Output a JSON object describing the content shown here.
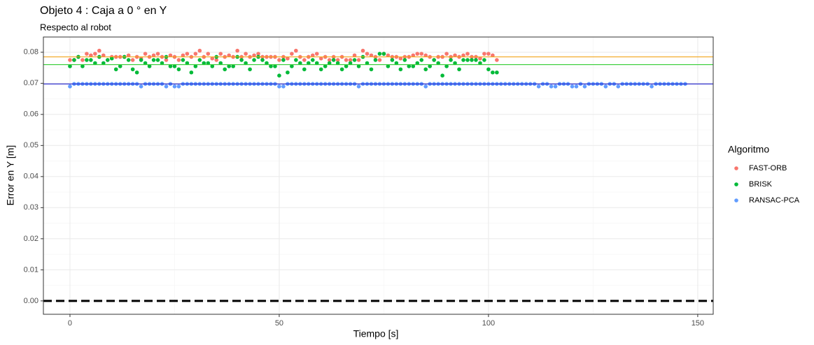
{
  "chart_data": {
    "type": "scatter",
    "title": "Objeto 4 : Caja a 0 ° en  Y",
    "subtitle": "Respecto al robot",
    "x_label": "Tiempo [s]",
    "y_label": "Error en Y [m]",
    "legend_title": "Algoritmo",
    "legend_position": "right",
    "grid": true,
    "xlim": [
      -6.35,
      153.7
    ],
    "ylim": [
      -0.0043,
      0.0849
    ],
    "xticks": [
      0,
      50,
      100,
      150
    ],
    "yticks": [
      {
        "value": 0,
        "label": "0.00"
      },
      0.01,
      0.02,
      0.03,
      0.04,
      0.05,
      0.06,
      0.07,
      0.08
    ],
    "x_minor_grid": [
      25,
      75,
      125
    ],
    "y_minor_grid": [
      0.005,
      0.015,
      0.025,
      0.035,
      0.045,
      0.055,
      0.065,
      0.075
    ],
    "hlines": [
      {
        "value": 0.0785,
        "color": "#f2a51a",
        "linetype": "solid"
      },
      {
        "value": 0.076,
        "color": "#33cc33",
        "linetype": "solid"
      },
      {
        "value": 0.0698,
        "color": "#1a1acc",
        "linetype": "solid"
      },
      {
        "value": 0,
        "color": "#000000",
        "linetype": "dashed"
      }
    ],
    "series": [
      {
        "name": "FAST-ORB",
        "color": "#F8766D",
        "x": [
          0,
          1,
          2,
          3,
          4,
          5,
          6,
          7,
          8,
          9,
          10,
          11,
          12,
          13,
          14,
          15,
          16,
          17,
          18,
          19,
          20,
          21,
          22,
          23,
          24,
          25,
          26,
          27,
          28,
          29,
          30,
          31,
          32,
          33,
          34,
          35,
          36,
          37,
          38,
          39,
          40,
          41,
          42,
          43,
          44,
          45,
          46,
          47,
          48,
          49,
          50,
          51,
          52,
          53,
          54,
          55,
          56,
          57,
          58,
          59,
          60,
          61,
          62,
          63,
          64,
          65,
          66,
          67,
          68,
          69,
          70,
          71,
          72,
          73,
          74,
          75,
          76,
          77,
          78,
          79,
          80,
          81,
          82,
          83,
          84,
          85,
          86,
          87,
          88,
          89,
          90,
          91,
          92,
          93,
          94,
          95,
          96,
          97,
          98,
          99,
          100,
          101,
          102
        ],
        "values": [
          0.0775,
          0.0775,
          0.0785,
          0.0775,
          0.0795,
          0.079,
          0.0795,
          0.0805,
          0.079,
          0.0775,
          0.0785,
          0.0785,
          0.0785,
          0.0785,
          0.079,
          0.0775,
          0.0785,
          0.078,
          0.0795,
          0.0785,
          0.079,
          0.0795,
          0.0785,
          0.0775,
          0.079,
          0.0785,
          0.0775,
          0.079,
          0.0795,
          0.0785,
          0.0795,
          0.0805,
          0.0785,
          0.0795,
          0.078,
          0.0775,
          0.0795,
          0.0785,
          0.079,
          0.0785,
          0.0805,
          0.0785,
          0.0795,
          0.0785,
          0.079,
          0.0795,
          0.0785,
          0.0785,
          0.0785,
          0.0785,
          0.0775,
          0.0785,
          0.078,
          0.0795,
          0.0805,
          0.0785,
          0.0775,
          0.0785,
          0.079,
          0.0795,
          0.078,
          0.0785,
          0.0775,
          0.0785,
          0.0775,
          0.0785,
          0.0775,
          0.0775,
          0.079,
          0.0775,
          0.0805,
          0.0795,
          0.079,
          0.0785,
          0.0775,
          0.0795,
          0.079,
          0.0785,
          0.0785,
          0.078,
          0.0785,
          0.0785,
          0.079,
          0.0795,
          0.0795,
          0.079,
          0.0785,
          0.0775,
          0.0785,
          0.0785,
          0.0795,
          0.0785,
          0.079,
          0.0785,
          0.079,
          0.0795,
          0.0785,
          0.0785,
          0.078,
          0.0795,
          0.0795,
          0.079,
          0.0775
        ]
      },
      {
        "name": "BRISK",
        "color": "#00BA38",
        "x": [
          0,
          1,
          2,
          3,
          4,
          5,
          6,
          7,
          8,
          9,
          10,
          11,
          12,
          13,
          14,
          15,
          16,
          17,
          18,
          19,
          20,
          21,
          22,
          23,
          24,
          25,
          26,
          27,
          28,
          29,
          30,
          31,
          32,
          33,
          34,
          35,
          36,
          37,
          38,
          39,
          40,
          41,
          42,
          43,
          44,
          45,
          46,
          47,
          48,
          49,
          50,
          51,
          52,
          53,
          54,
          55,
          56,
          57,
          58,
          59,
          60,
          61,
          62,
          63,
          64,
          65,
          66,
          67,
          68,
          69,
          70,
          71,
          72,
          73,
          74,
          75,
          76,
          77,
          78,
          79,
          80,
          81,
          82,
          83,
          84,
          85,
          86,
          87,
          88,
          89,
          90,
          91,
          92,
          93,
          94,
          95,
          96,
          97,
          98,
          99,
          100,
          101,
          102
        ],
        "values": [
          0.0755,
          0.0775,
          0.0785,
          0.0755,
          0.0775,
          0.0775,
          0.0765,
          0.0785,
          0.0765,
          0.0775,
          0.078,
          0.0745,
          0.0755,
          0.0785,
          0.0775,
          0.0745,
          0.0735,
          0.0775,
          0.0765,
          0.0755,
          0.0775,
          0.0775,
          0.0765,
          0.0785,
          0.0755,
          0.0755,
          0.0745,
          0.0775,
          0.0765,
          0.0735,
          0.0755,
          0.0775,
          0.0765,
          0.0765,
          0.0755,
          0.0785,
          0.0765,
          0.0745,
          0.0755,
          0.0755,
          0.0785,
          0.0775,
          0.0765,
          0.0745,
          0.0775,
          0.0785,
          0.0775,
          0.0765,
          0.0755,
          0.0755,
          0.0725,
          0.0775,
          0.0735,
          0.0755,
          0.0775,
          0.0765,
          0.0745,
          0.0765,
          0.0775,
          0.0765,
          0.0745,
          0.0755,
          0.0765,
          0.0775,
          0.0765,
          0.0745,
          0.0755,
          0.0765,
          0.0775,
          0.0755,
          0.0785,
          0.0765,
          0.0745,
          0.0775,
          0.0795,
          0.0795,
          0.0755,
          0.0775,
          0.0765,
          0.0745,
          0.0775,
          0.0755,
          0.0755,
          0.0765,
          0.0775,
          0.0745,
          0.0755,
          0.0775,
          0.0765,
          0.0725,
          0.0755,
          0.0775,
          0.0765,
          0.0745,
          0.0775,
          0.0775,
          0.0775,
          0.0775,
          0.0765,
          0.0775,
          0.0745,
          0.0735,
          0.0735
        ]
      },
      {
        "name": "RANSAC-PCA",
        "color": "#619CFF",
        "x": [
          0,
          1,
          2,
          3,
          4,
          5,
          6,
          7,
          8,
          9,
          10,
          11,
          12,
          13,
          14,
          15,
          16,
          17,
          18,
          19,
          20,
          21,
          22,
          23,
          24,
          25,
          26,
          27,
          28,
          29,
          30,
          31,
          32,
          33,
          34,
          35,
          36,
          37,
          38,
          39,
          40,
          41,
          42,
          43,
          44,
          45,
          46,
          47,
          48,
          49,
          50,
          51,
          52,
          53,
          54,
          55,
          56,
          57,
          58,
          59,
          60,
          61,
          62,
          63,
          64,
          65,
          66,
          67,
          68,
          69,
          70,
          71,
          72,
          73,
          74,
          75,
          76,
          77,
          78,
          79,
          80,
          81,
          82,
          83,
          84,
          85,
          86,
          87,
          88,
          89,
          90,
          91,
          92,
          93,
          94,
          95,
          96,
          97,
          98,
          99,
          100,
          101,
          102,
          103,
          104,
          105,
          106,
          107,
          108,
          109,
          110,
          111,
          112,
          113,
          114,
          115,
          116,
          117,
          118,
          119,
          120,
          121,
          122,
          123,
          124,
          125,
          126,
          127,
          128,
          129,
          130,
          131,
          132,
          133,
          134,
          135,
          136,
          137,
          138,
          139,
          140,
          141,
          142,
          143,
          144,
          145,
          146,
          147
        ],
        "values": [
          0.069,
          0.0698,
          0.0698,
          0.0698,
          0.0698,
          0.0698,
          0.0698,
          0.0698,
          0.0698,
          0.0698,
          0.0698,
          0.0698,
          0.0698,
          0.0698,
          0.0698,
          0.0698,
          0.0698,
          0.069,
          0.0698,
          0.0698,
          0.0698,
          0.0698,
          0.0698,
          0.069,
          0.0698,
          0.069,
          0.069,
          0.0698,
          0.0698,
          0.0698,
          0.0698,
          0.0698,
          0.0698,
          0.0698,
          0.0698,
          0.0698,
          0.0698,
          0.0698,
          0.0698,
          0.0698,
          0.0698,
          0.0698,
          0.0698,
          0.0698,
          0.0698,
          0.0698,
          0.0698,
          0.0698,
          0.0698,
          0.0698,
          0.069,
          0.069,
          0.0698,
          0.0698,
          0.0698,
          0.0698,
          0.0698,
          0.0698,
          0.0698,
          0.0698,
          0.0698,
          0.0698,
          0.0698,
          0.0698,
          0.0698,
          0.0698,
          0.0698,
          0.0698,
          0.0698,
          0.069,
          0.0698,
          0.0698,
          0.0698,
          0.0698,
          0.0698,
          0.0698,
          0.0698,
          0.0698,
          0.0698,
          0.0698,
          0.0698,
          0.0698,
          0.0698,
          0.0698,
          0.0698,
          0.069,
          0.0698,
          0.0698,
          0.0698,
          0.0698,
          0.0698,
          0.0698,
          0.0698,
          0.0698,
          0.0698,
          0.0698,
          0.0698,
          0.0698,
          0.0698,
          0.0698,
          0.0698,
          0.0698,
          0.0698,
          0.0698,
          0.0698,
          0.0698,
          0.0698,
          0.0698,
          0.0698,
          0.0698,
          0.0698,
          0.0698,
          0.069,
          0.0698,
          0.0698,
          0.069,
          0.069,
          0.0698,
          0.0698,
          0.0698,
          0.069,
          0.069,
          0.0698,
          0.069,
          0.0698,
          0.0698,
          0.0698,
          0.0698,
          0.069,
          0.0698,
          0.0698,
          0.069,
          0.0698,
          0.0698,
          0.0698,
          0.0698,
          0.0698,
          0.0698,
          0.0698,
          0.069,
          0.0698,
          0.0698,
          0.0698,
          0.0698,
          0.0698,
          0.0698,
          0.0698,
          0.0698
        ]
      }
    ]
  }
}
